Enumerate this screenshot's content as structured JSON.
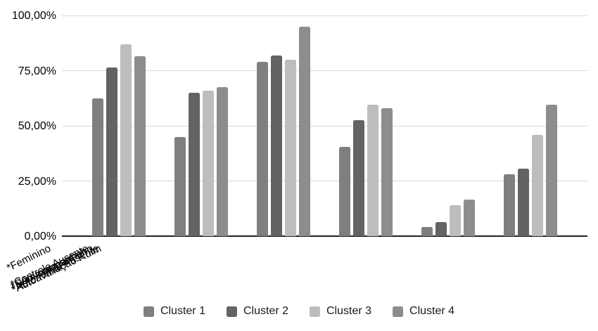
{
  "chart_data": {
    "type": "bar",
    "title": "",
    "xlabel": "",
    "ylabel": "",
    "categories": [
      "*Feminino",
      "*Sem companheiro",
      "*Não mora sozinho",
      "*Autoavaliação Ruim",
      "*Autonomia Ausente",
      "*Controle Ausente"
    ],
    "series": [
      {
        "name": "Cluster 1",
        "color": "#7f7f7f",
        "values": [
          62.5,
          45,
          79,
          40.5,
          4,
          28
        ]
      },
      {
        "name": "Cluster 2",
        "color": "#636363",
        "values": [
          76.5,
          65,
          82,
          52.5,
          6.5,
          30.5
        ]
      },
      {
        "name": "Cluster 3",
        "color": "#bdbdbd",
        "values": [
          87,
          66,
          80,
          59.5,
          14,
          46
        ]
      },
      {
        "name": "Cluster 4",
        "color": "#8d8d8d",
        "values": [
          81.5,
          67.5,
          95,
          58,
          16.5,
          59.5
        ]
      }
    ],
    "y_ticks": [
      "100,00%",
      "75,00%",
      "50,00%",
      "25,00%",
      "0,00%"
    ],
    "ylim": [
      0,
      100
    ],
    "grid": true,
    "legend_position": "bottom",
    "colors": {
      "gridline": "#d9d9d9",
      "axis_line": "#212121",
      "label_text": "#000000"
    }
  }
}
